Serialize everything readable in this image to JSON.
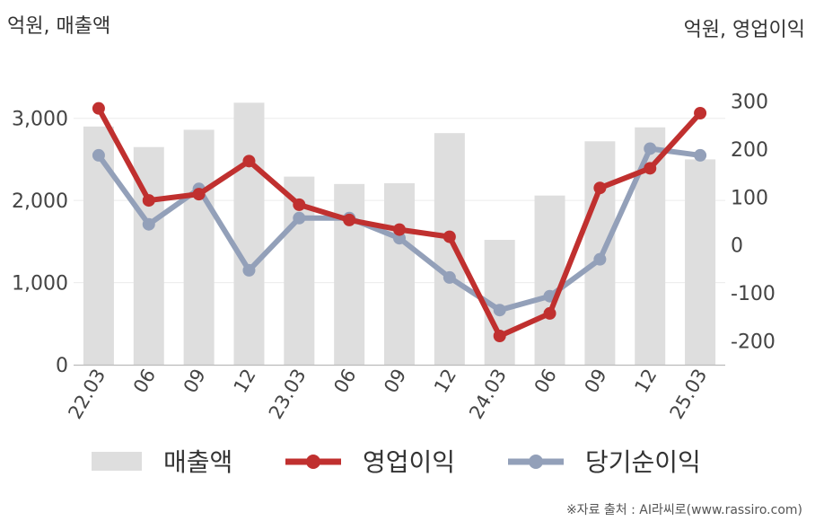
{
  "chart_data": {
    "type": "bar+line",
    "left_unit": "억원, 매출액",
    "right_unit": "억원, 영업이익",
    "categories": [
      "22.03",
      "06",
      "09",
      "12",
      "23.03",
      "06",
      "09",
      "12",
      "24.03",
      "06",
      "09",
      "12",
      "25.03"
    ],
    "left_axis": {
      "min": 0,
      "max": 3500,
      "ticks": [
        0,
        1000,
        2000,
        3000
      ],
      "tick_labels": [
        "0",
        "1,000",
        "2,000",
        "3,000"
      ]
    },
    "right_axis": {
      "min": -250,
      "max": 350,
      "ticks": [
        -200,
        -100,
        0,
        100,
        200,
        300
      ],
      "tick_labels": [
        "-200",
        "-100",
        "0",
        "100",
        "200",
        "300"
      ]
    },
    "series": [
      {
        "name": "매출액",
        "type": "bar",
        "axis": "left",
        "color": "#dedede",
        "values": [
          2900,
          2650,
          2860,
          3190,
          2290,
          2200,
          2210,
          2820,
          1520,
          2060,
          2720,
          2890,
          2500
        ]
      },
      {
        "name": "영업이익",
        "type": "line",
        "axis": "right",
        "color": "#c0302f",
        "values": [
          285,
          93,
          106,
          175,
          84,
          52,
          32,
          17,
          -190,
          -143,
          119,
          160,
          275
        ]
      },
      {
        "name": "당기순이익",
        "type": "line",
        "axis": "right",
        "color": "#93a0b9",
        "values": [
          187,
          43,
          117,
          -53,
          56,
          56,
          14,
          -68,
          -136,
          -107,
          -30,
          201,
          187
        ]
      }
    ],
    "legend_position": "bottom",
    "grid": true,
    "source": "※자료 출처 : AI라씨로(www.rassiro.com)"
  }
}
